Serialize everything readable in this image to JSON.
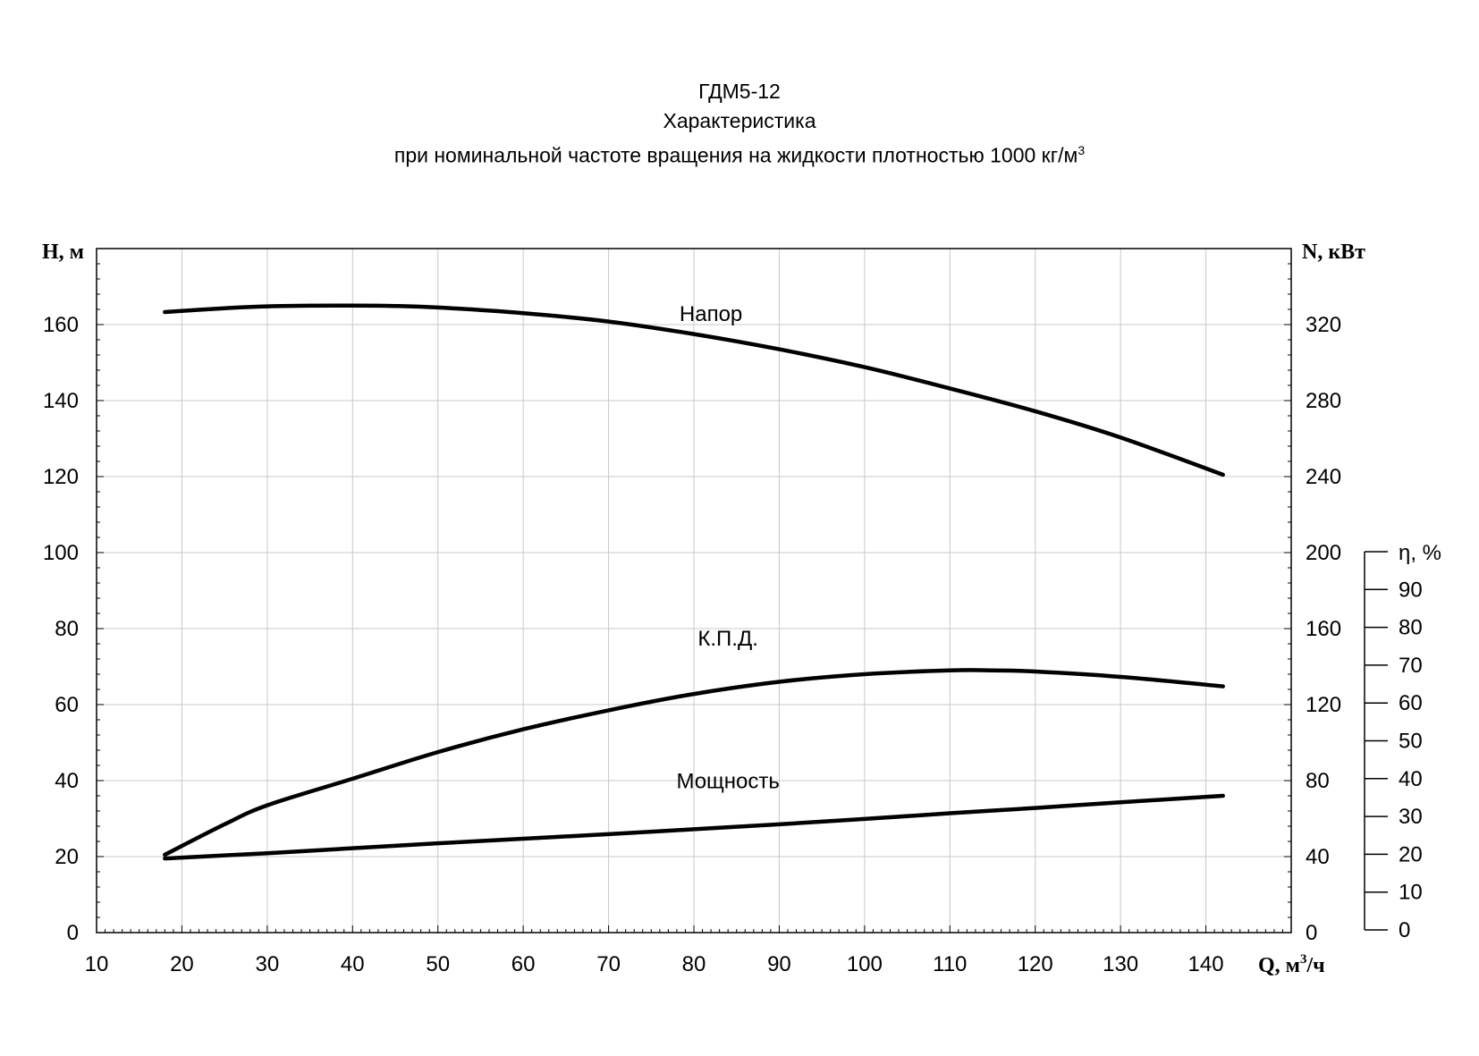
{
  "title": {
    "line1": "ГДМ5-12",
    "line2": "Характеристика",
    "line3": "при номинальной частоте вращения на жидкости плотностью 1000 кг/м",
    "line3_sup": "3"
  },
  "chart_data": {
    "type": "line",
    "title": "ГДМ5-12 Характеристика при номинальной частоте вращения на жидкости плотностью 1000 кг/м3",
    "xlabel": "Q, м",
    "xlabel_sup": "3",
    "xlabel_suffix": "/ч",
    "ylabel_left": "H, м",
    "ylabel_right": "N, кВт",
    "ylabel_eff": "η, %",
    "xlim": [
      10,
      150
    ],
    "ylim_left": [
      0,
      180
    ],
    "ylim_right": [
      0,
      360
    ],
    "ylim_eff": [
      0,
      100
    ],
    "grid": true,
    "x_ticks": [
      10,
      20,
      30,
      40,
      50,
      60,
      70,
      80,
      90,
      100,
      110,
      120,
      130,
      140
    ],
    "left_ticks": [
      0,
      20,
      40,
      60,
      80,
      100,
      120,
      140,
      160
    ],
    "right_ticks": [
      0,
      40,
      80,
      120,
      160,
      200,
      240,
      280,
      320
    ],
    "eff_ticks": [
      0,
      10,
      20,
      30,
      40,
      50,
      60,
      70,
      80,
      90
    ],
    "series": [
      {
        "name": "Напор",
        "axis": "left",
        "x": [
          18,
          25,
          30,
          38,
          45,
          50,
          60,
          70,
          80,
          90,
          100,
          110,
          120,
          130,
          142
        ],
        "y": [
          163.3,
          164.3,
          164.8,
          165,
          164.9,
          164.5,
          163,
          160.8,
          157.5,
          153.5,
          148.8,
          143.2,
          137.2,
          130.3,
          120.5
        ]
      },
      {
        "name": "К.П.Д.",
        "axis": "left",
        "x": [
          18,
          25,
          30,
          40,
          50,
          60,
          70,
          80,
          90,
          100,
          110,
          115,
          120,
          130,
          142
        ],
        "y": [
          20.5,
          28.5,
          33.5,
          40.5,
          47.5,
          53.5,
          58.5,
          62.8,
          66,
          68,
          69,
          69,
          68.7,
          67.3,
          64.8
        ]
      },
      {
        "name": "Мощность",
        "axis": "right",
        "x": [
          18,
          30,
          40,
          50,
          60,
          70,
          80,
          90,
          100,
          110,
          120,
          130,
          142
        ],
        "y": [
          39,
          41.8,
          44.4,
          47,
          49.4,
          51.8,
          54.4,
          57,
          59.8,
          62.8,
          65.6,
          68.6,
          72
        ]
      }
    ]
  }
}
